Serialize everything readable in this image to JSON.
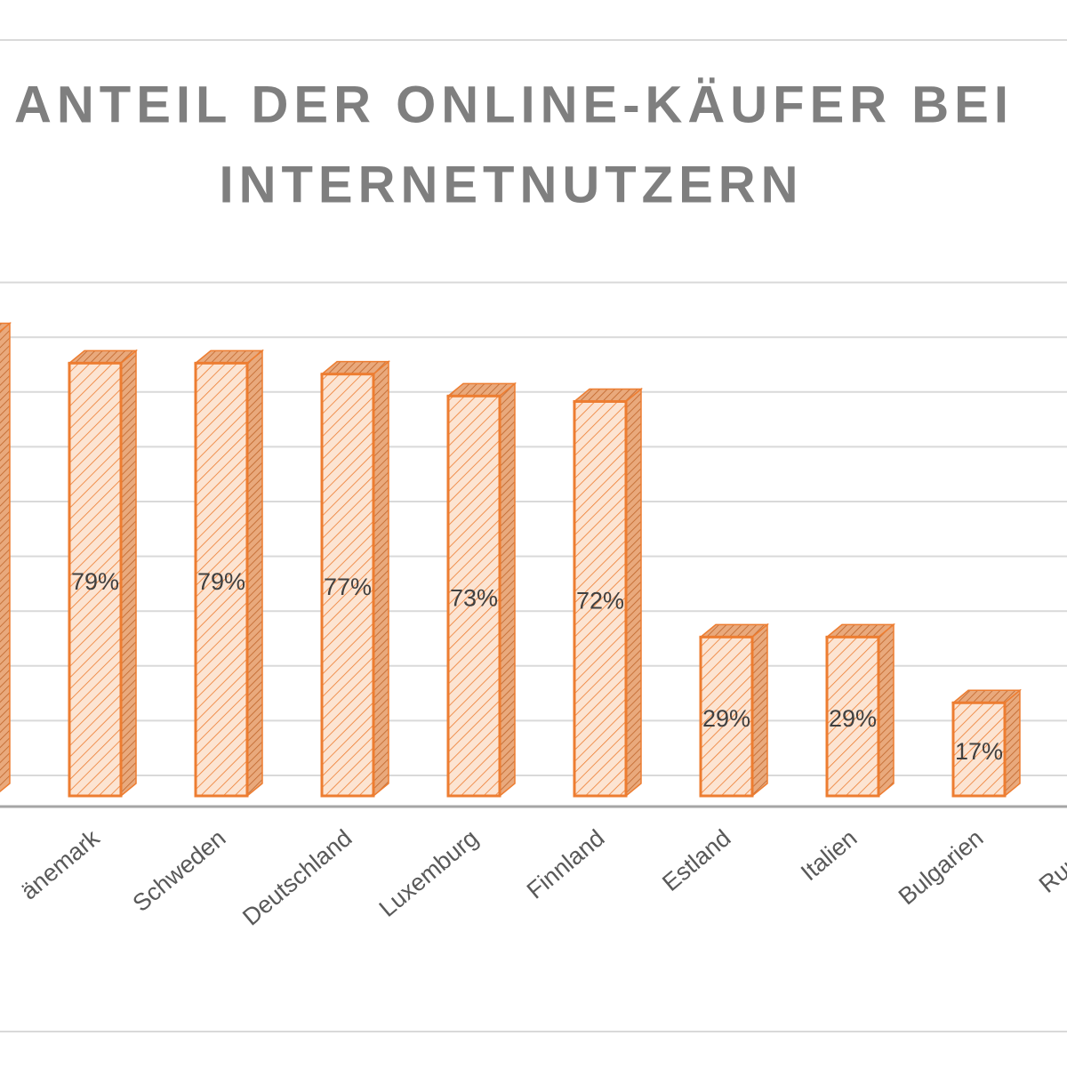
{
  "chart_data": {
    "type": "bar3d",
    "title": [
      "ANTEIL DER ONLINE-KÄUFER BEI",
      "INTERNETNUTZERN"
    ],
    "categories": [
      null,
      "änemark",
      "Schweden",
      "Deutschland",
      "Luxemburg",
      "Finnland",
      "Estland",
      "Italien",
      "Bulgarien",
      "Rumäni"
    ],
    "values": [
      84,
      79,
      79,
      77,
      73,
      72,
      29,
      29,
      17,
      null
    ],
    "value_labels": [
      null,
      "79%",
      "79%",
      "77%",
      "73%",
      "72%",
      "29%",
      "29%",
      "17%",
      null
    ],
    "color": "#ed7d31",
    "ylim": [
      0,
      100
    ],
    "yticks": [
      10,
      20,
      30,
      40,
      50,
      60,
      70,
      80,
      90,
      100
    ],
    "grid": true
  }
}
